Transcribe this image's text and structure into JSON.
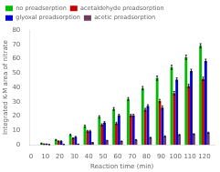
{
  "chart_data": {
    "type": "bar",
    "xlabel": "Reaction time (min)",
    "ylabel": "Integrated K-M area of nitrate",
    "x": [
      10,
      20,
      30,
      40,
      50,
      60,
      70,
      80,
      90,
      100,
      110,
      120
    ],
    "series": [
      {
        "name": "no preadsorption",
        "color": "#00bb00",
        "values": [
          1.0,
          3.5,
          7.0,
          13.0,
          19.5,
          25.0,
          32.0,
          39.5,
          46.5,
          54.0,
          61.0,
          69.0
        ],
        "errors": [
          0.3,
          0.3,
          0.5,
          0.7,
          0.8,
          1.0,
          1.0,
          1.2,
          1.5,
          1.5,
          1.5,
          1.5
        ]
      },
      {
        "name": "acetaldehyde preadsorption",
        "color": "#cc0000",
        "values": [
          0.5,
          2.5,
          4.5,
          9.5,
          14.0,
          15.0,
          20.5,
          24.5,
          30.5,
          36.0,
          41.0,
          46.0
        ],
        "errors": [
          0.2,
          0.3,
          0.4,
          0.6,
          0.7,
          0.8,
          0.8,
          1.0,
          1.2,
          1.2,
          1.2,
          1.2
        ]
      },
      {
        "name": "glyoxal preadsorption",
        "color": "#0000dd",
        "values": [
          0.5,
          2.5,
          5.5,
          9.5,
          15.5,
          20.5,
          20.5,
          27.0,
          26.0,
          45.5,
          51.5,
          58.5
        ],
        "errors": [
          0.2,
          0.3,
          0.4,
          0.6,
          0.7,
          0.8,
          0.8,
          1.0,
          1.2,
          1.2,
          1.2,
          1.2
        ]
      },
      {
        "name": "acetic preadsorption",
        "color": "#6b3a5e",
        "values": [
          0.2,
          0.3,
          0.5,
          1.5,
          3.0,
          2.5,
          3.5,
          5.0,
          6.0,
          7.0,
          7.5,
          8.5
        ],
        "errors": [
          0.1,
          0.1,
          0.1,
          0.2,
          0.2,
          0.2,
          0.2,
          0.3,
          0.3,
          0.3,
          0.3,
          0.4
        ]
      }
    ],
    "xlim": [
      -1,
      127
    ],
    "xticks": [
      0,
      10,
      20,
      30,
      40,
      50,
      60,
      70,
      80,
      90,
      100,
      110,
      120
    ],
    "ylim": [
      0,
      80
    ],
    "yticks": [
      0,
      10,
      20,
      30,
      40,
      50,
      60,
      70,
      80
    ],
    "grid": false,
    "legend": "upper left"
  }
}
